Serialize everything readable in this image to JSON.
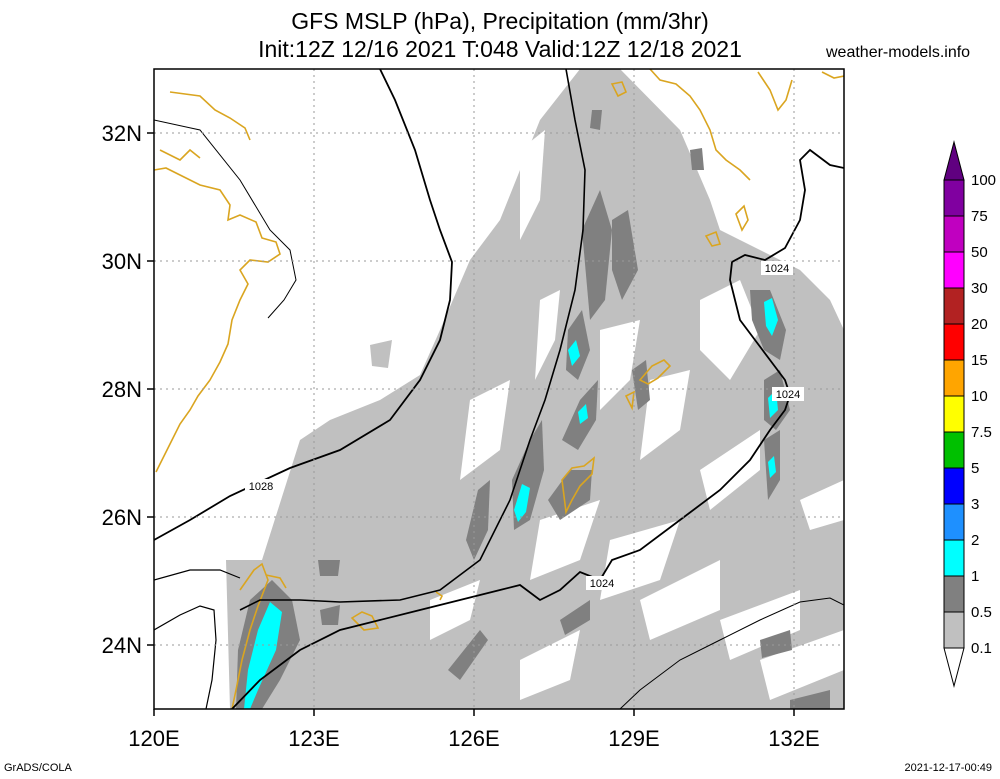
{
  "title": {
    "line1": "GFS MSLP (hPa), Precipitation (mm/3hr)",
    "line2": "Init:12Z 12/16 2021 T:048 Valid:12Z 12/18 2021"
  },
  "source": "weather-models.info",
  "footer": {
    "left": "GrADS/COLA",
    "right": "2021-12-17-00:49"
  },
  "axes": {
    "lon_labels": [
      "120E",
      "123E",
      "126E",
      "129E",
      "132E"
    ],
    "lat_labels": [
      "32N",
      "30N",
      "28N",
      "26N",
      "24N"
    ],
    "lon_range": [
      120,
      133
    ],
    "lat_range": [
      23,
      33
    ]
  },
  "isobars": [
    {
      "label": "1028"
    },
    {
      "label": "1024"
    },
    {
      "label": "1024"
    },
    {
      "label": "1024"
    }
  ],
  "colorbar": {
    "items": [
      {
        "label": "0.1",
        "color": "#ffffff"
      },
      {
        "label": "0.5",
        "color": "#c0c0c0"
      },
      {
        "label": "1",
        "color": "#808080"
      },
      {
        "label": "2",
        "color": "#00ffff"
      },
      {
        "label": "3",
        "color": "#1e90ff"
      },
      {
        "label": "5",
        "color": "#0000ff"
      },
      {
        "label": "7.5",
        "color": "#00c000"
      },
      {
        "label": "10",
        "color": "#ffff00"
      },
      {
        "label": "15",
        "color": "#ffa500"
      },
      {
        "label": "20",
        "color": "#ff0000"
      },
      {
        "label": "30",
        "color": "#b22222"
      },
      {
        "label": "50",
        "color": "#ff00ff"
      },
      {
        "label": "75",
        "color": "#c000c0"
      },
      {
        "label": "100",
        "color": "#8000a0"
      }
    ],
    "top_color": "#600080"
  },
  "colors": {
    "precip_light": "#c0c0c0",
    "precip_mid": "#808080",
    "precip_heavy": "#00ffff",
    "coastline": "#daa520",
    "isobar": "#000000"
  }
}
